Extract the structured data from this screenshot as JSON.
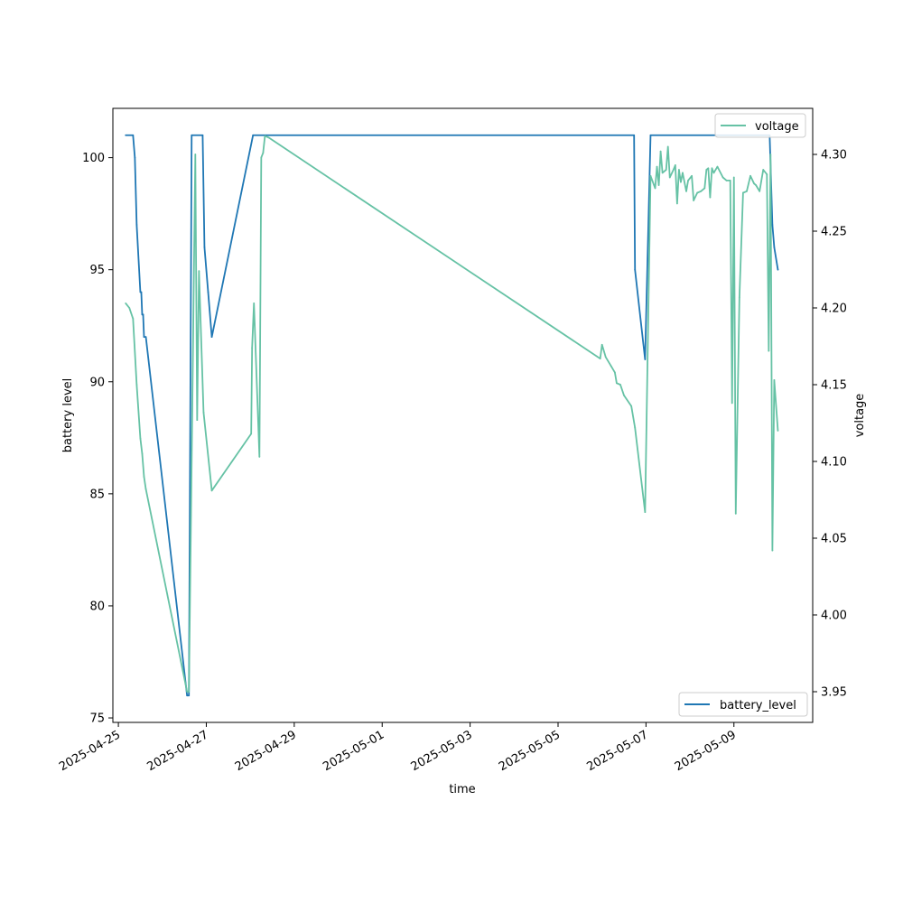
{
  "chart_data": {
    "type": "line",
    "xlabel": "time",
    "ylabel": "battery level",
    "y2label": "voltage",
    "xlim": [
      "2025-04-24T21:00",
      "2025-05-10T19:00"
    ],
    "ylim": [
      74.8,
      102.2
    ],
    "y2lim": [
      3.93,
      4.33
    ],
    "x_ticks": [
      "2025-04-25",
      "2025-04-27",
      "2025-04-29",
      "2025-05-01",
      "2025-05-03",
      "2025-05-05",
      "2025-05-07",
      "2025-05-09"
    ],
    "y_ticks": [
      75,
      80,
      85,
      90,
      95,
      100
    ],
    "y2_ticks": [
      "3.95",
      "4.00",
      "4.05",
      "4.10",
      "4.15",
      "4.20",
      "4.25",
      "4.30"
    ],
    "legend_top": {
      "label": "voltage",
      "position": "top-right"
    },
    "legend_bottom": {
      "label": "battery_level",
      "position": "bottom-right"
    },
    "colors": {
      "battery_level": "#1f77b4",
      "voltage": "#66c2a5"
    },
    "series": [
      {
        "name": "battery_level",
        "axis": "left",
        "points": [
          [
            "2025-04-25T04:00",
            101
          ],
          [
            "2025-04-25T08:00",
            101
          ],
          [
            "2025-04-25T09:00",
            100
          ],
          [
            "2025-04-25T10:00",
            97
          ],
          [
            "2025-04-25T12:00",
            94
          ],
          [
            "2025-04-25T12:30",
            94
          ],
          [
            "2025-04-25T13:00",
            93
          ],
          [
            "2025-04-25T13:30",
            93
          ],
          [
            "2025-04-25T14:00",
            92
          ],
          [
            "2025-04-25T15:00",
            92
          ],
          [
            "2025-04-26T13:30",
            76
          ],
          [
            "2025-04-26T14:30",
            76
          ],
          [
            "2025-04-26T16:00",
            101
          ],
          [
            "2025-04-26T22:00",
            101
          ],
          [
            "2025-04-26T23:00",
            96
          ],
          [
            "2025-04-27T01:00",
            94
          ],
          [
            "2025-04-27T03:00",
            92
          ],
          [
            "2025-04-28T01:30",
            101
          ],
          [
            "2025-05-06T17:30",
            101
          ],
          [
            "2025-05-06T18:00",
            95
          ],
          [
            "2025-05-06T23:30",
            91
          ],
          [
            "2025-05-07T02:30",
            101
          ],
          [
            "2025-05-09T19:30",
            101
          ],
          [
            "2025-05-09T21:00",
            97
          ],
          [
            "2025-05-09T22:00",
            96
          ],
          [
            "2025-05-10T00:00",
            95
          ]
        ]
      },
      {
        "name": "voltage",
        "axis": "right",
        "points": [
          [
            "2025-04-25T04:00",
            4.203
          ],
          [
            "2025-04-25T06:00",
            4.2
          ],
          [
            "2025-04-25T08:00",
            4.193
          ],
          [
            "2025-04-25T10:00",
            4.15
          ],
          [
            "2025-04-25T12:00",
            4.115
          ],
          [
            "2025-04-25T13:00",
            4.105
          ],
          [
            "2025-04-25T14:00",
            4.09
          ],
          [
            "2025-04-25T15:00",
            4.082
          ],
          [
            "2025-04-26T13:30",
            3.95
          ],
          [
            "2025-04-26T14:30",
            3.95
          ],
          [
            "2025-04-26T18:00",
            4.3
          ],
          [
            "2025-04-26T19:00",
            4.127
          ],
          [
            "2025-04-26T20:00",
            4.224
          ],
          [
            "2025-04-26T22:30",
            4.132
          ],
          [
            "2025-04-27T03:00",
            4.081
          ],
          [
            "2025-04-28T00:30",
            4.118
          ],
          [
            "2025-04-28T01:00",
            4.174
          ],
          [
            "2025-04-28T02:00",
            4.203
          ],
          [
            "2025-04-28T05:00",
            4.103
          ],
          [
            "2025-04-28T06:00",
            4.298
          ],
          [
            "2025-04-28T07:00",
            4.301
          ],
          [
            "2025-04-28T08:00",
            4.312
          ],
          [
            "2025-04-28T10:00",
            4.311
          ],
          [
            "2025-05-05T23:00",
            4.167
          ],
          [
            "2025-05-06T00:00",
            4.176
          ],
          [
            "2025-05-06T02:00",
            4.168
          ],
          [
            "2025-05-06T05:00",
            4.162
          ],
          [
            "2025-05-06T07:00",
            4.158
          ],
          [
            "2025-05-06T08:00",
            4.151
          ],
          [
            "2025-05-06T10:00",
            4.15
          ],
          [
            "2025-05-06T12:00",
            4.143
          ],
          [
            "2025-05-06T16:00",
            4.136
          ],
          [
            "2025-05-06T18:00",
            4.122
          ],
          [
            "2025-05-06T23:30",
            4.067
          ],
          [
            "2025-05-07T02:30",
            4.286
          ],
          [
            "2025-05-07T05:00",
            4.278
          ],
          [
            "2025-05-07T06:00",
            4.292
          ],
          [
            "2025-05-07T07:00",
            4.28
          ],
          [
            "2025-05-07T08:00",
            4.302
          ],
          [
            "2025-05-07T09:00",
            4.288
          ],
          [
            "2025-05-07T11:00",
            4.29
          ],
          [
            "2025-05-07T12:00",
            4.305
          ],
          [
            "2025-05-07T13:00",
            4.285
          ],
          [
            "2025-05-07T15:00",
            4.29
          ],
          [
            "2025-05-07T16:00",
            4.293
          ],
          [
            "2025-05-07T17:00",
            4.268
          ],
          [
            "2025-05-07T18:00",
            4.29
          ],
          [
            "2025-05-07T19:00",
            4.282
          ],
          [
            "2025-05-07T20:00",
            4.288
          ],
          [
            "2025-05-07T22:00",
            4.276
          ],
          [
            "2025-05-07T23:00",
            4.283
          ],
          [
            "2025-05-08T01:00",
            4.286
          ],
          [
            "2025-05-08T02:00",
            4.27
          ],
          [
            "2025-05-08T04:00",
            4.275
          ],
          [
            "2025-05-08T06:00",
            4.276
          ],
          [
            "2025-05-08T08:00",
            4.278
          ],
          [
            "2025-05-08T09:00",
            4.29
          ],
          [
            "2025-05-08T10:00",
            4.291
          ],
          [
            "2025-05-08T11:00",
            4.272
          ],
          [
            "2025-05-08T12:00",
            4.291
          ],
          [
            "2025-05-08T13:00",
            4.288
          ],
          [
            "2025-05-08T15:00",
            4.292
          ],
          [
            "2025-05-08T18:00",
            4.285
          ],
          [
            "2025-05-08T20:00",
            4.283
          ],
          [
            "2025-05-08T22:00",
            4.283
          ],
          [
            "2025-05-08T23:00",
            4.138
          ],
          [
            "2025-05-09T00:00",
            4.285
          ],
          [
            "2025-05-09T01:00",
            4.066
          ],
          [
            "2025-05-09T03:00",
            4.207
          ],
          [
            "2025-05-09T05:00",
            4.275
          ],
          [
            "2025-05-09T07:00",
            4.276
          ],
          [
            "2025-05-09T09:00",
            4.286
          ],
          [
            "2025-05-09T11:00",
            4.281
          ],
          [
            "2025-05-09T12:00",
            4.28
          ],
          [
            "2025-05-09T14:00",
            4.276
          ],
          [
            "2025-05-09T16:00",
            4.29
          ],
          [
            "2025-05-09T18:00",
            4.287
          ],
          [
            "2025-05-09T19:00",
            4.172
          ],
          [
            "2025-05-09T20:00",
            4.3
          ],
          [
            "2025-05-09T21:00",
            4.042
          ],
          [
            "2025-05-09T22:00",
            4.153
          ],
          [
            "2025-05-10T00:00",
            4.12
          ]
        ]
      }
    ]
  }
}
